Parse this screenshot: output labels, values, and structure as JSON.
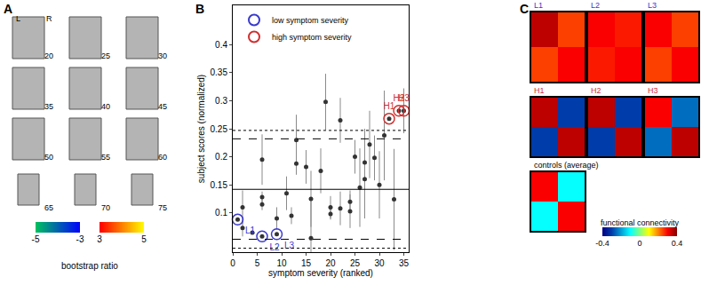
{
  "chart_data": [
    {
      "type": "slices",
      "panel_label": "A",
      "orientation_labels": [
        "L",
        "R"
      ],
      "slices": [
        20,
        25,
        30,
        35,
        40,
        45,
        50,
        55,
        60,
        65,
        70,
        75
      ],
      "colorbar": {
        "title": "bootstrap ratio",
        "negative": {
          "xlim": [
            -5,
            -3
          ],
          "xticks": [
            -5,
            -3
          ],
          "colors": [
            "#00c060",
            "#0000ff"
          ]
        },
        "positive": {
          "xlim": [
            3,
            5
          ],
          "xticks": [
            3,
            5
          ],
          "colors": [
            "#ff0000",
            "#ffff00"
          ]
        }
      }
    },
    {
      "type": "scatter",
      "panel_label": "B",
      "x_label": "symptom severity (ranked)",
      "y_label": "subject scores (normalized)",
      "xlim": [
        0,
        36
      ],
      "xticks": [
        0,
        5,
        10,
        15,
        20,
        25,
        30,
        35
      ],
      "ylim": [
        0.03,
        0.47
      ],
      "yticks": [
        0.1,
        0.15,
        0.2,
        0.25,
        0.3,
        0.35,
        0.4
      ],
      "grid": false,
      "legend": "top left",
      "series": [
        {
          "color": "#333333",
          "marker": "circle",
          "x": [
            2,
            2,
            4,
            6,
            6,
            6,
            9,
            11,
            12,
            13,
            13,
            15,
            16,
            16,
            18,
            19,
            20,
            20,
            22,
            22,
            24,
            24,
            25,
            26,
            27,
            27,
            28,
            29,
            30,
            31,
            33
          ],
          "values": [
            0.073,
            0.11,
            0.065,
            0.115,
            0.128,
            0.195,
            0.09,
            0.135,
            0.095,
            0.23,
            0.188,
            0.182,
            0.125,
            0.055,
            0.175,
            0.298,
            0.11,
            0.098,
            0.265,
            0.108,
            0.12,
            0.103,
            0.2,
            0.145,
            0.19,
            0.16,
            0.222,
            0.198,
            0.15,
            0.238,
            0.124
          ],
          "errors": [
            0.015,
            0.03,
            0,
            0.01,
            0.01,
            0.045,
            0.02,
            0.03,
            0.015,
            0.045,
            0.02,
            0.03,
            0.05,
            0.07,
            0.04,
            0.05,
            0.02,
            0.01,
            0.04,
            0.03,
            0.02,
            0.03,
            0.03,
            0.07,
            0.06,
            0.07,
            0.06,
            0.04,
            0.06,
            0.08,
            0.09
          ]
        },
        {
          "name": "low symptom severity",
          "color": "#3a3acc",
          "marker": "open circle",
          "x": [
            1,
            6,
            9
          ],
          "values": [
            0.088,
            0.058,
            0.062
          ],
          "errors": [
            0,
            0,
            0
          ],
          "point_labels": [
            "L1",
            "L2",
            "L3"
          ]
        },
        {
          "name": "high symptom severity",
          "color": "#d03030",
          "marker": "open circle",
          "x": [
            32,
            34,
            35
          ],
          "values": [
            0.268,
            0.282,
            0.282
          ],
          "errors": [
            0,
            0,
            0.04
          ],
          "point_labels": [
            "H1",
            "H2",
            "H3"
          ]
        }
      ],
      "hlines": [
        {
          "value": 0.142,
          "line_style": "solid"
        },
        {
          "value": 0.232,
          "line_style": "dash"
        },
        {
          "value": 0.053,
          "line_style": "dash"
        },
        {
          "value": 0.247,
          "line_style": "dot"
        },
        {
          "value": 0.037,
          "line_style": "dot"
        }
      ]
    },
    {
      "type": "heatmap",
      "panel_label": "C",
      "tick_labels": false,
      "matrices": [
        {
          "title": "L1",
          "color": "#3a3acc",
          "cells": [
            [
              0.35,
              0.25
            ],
            [
              0.25,
              0.3
            ]
          ]
        },
        {
          "title": "L2",
          "color": "#3a3acc",
          "cells": [
            [
              0.3,
              0.28
            ],
            [
              0.28,
              0.3
            ]
          ]
        },
        {
          "title": "L3",
          "color": "#3a3acc",
          "cells": [
            [
              0.3,
              0.25
            ],
            [
              0.25,
              0.3
            ]
          ]
        },
        {
          "title": "H1",
          "color": "#d03030",
          "cells": [
            [
              0.35,
              -0.3
            ],
            [
              -0.3,
              0.35
            ]
          ]
        },
        {
          "title": "H2",
          "color": "#d03030",
          "cells": [
            [
              0.35,
              -0.3
            ],
            [
              -0.3,
              0.35
            ]
          ]
        },
        {
          "title": "H3",
          "color": "#d03030",
          "cells": [
            [
              0.3,
              -0.25
            ],
            [
              -0.25,
              0.35
            ]
          ]
        },
        {
          "title": "controls (average)",
          "color": "#000000",
          "cells": [
            [
              0.3,
              -0.1
            ],
            [
              -0.1,
              0.3
            ]
          ]
        }
      ],
      "colorbar": {
        "title": "functional connectivity",
        "zlim": [
          -0.4,
          0.4
        ],
        "ticks": [
          -0.4,
          0,
          0.4
        ]
      }
    }
  ]
}
